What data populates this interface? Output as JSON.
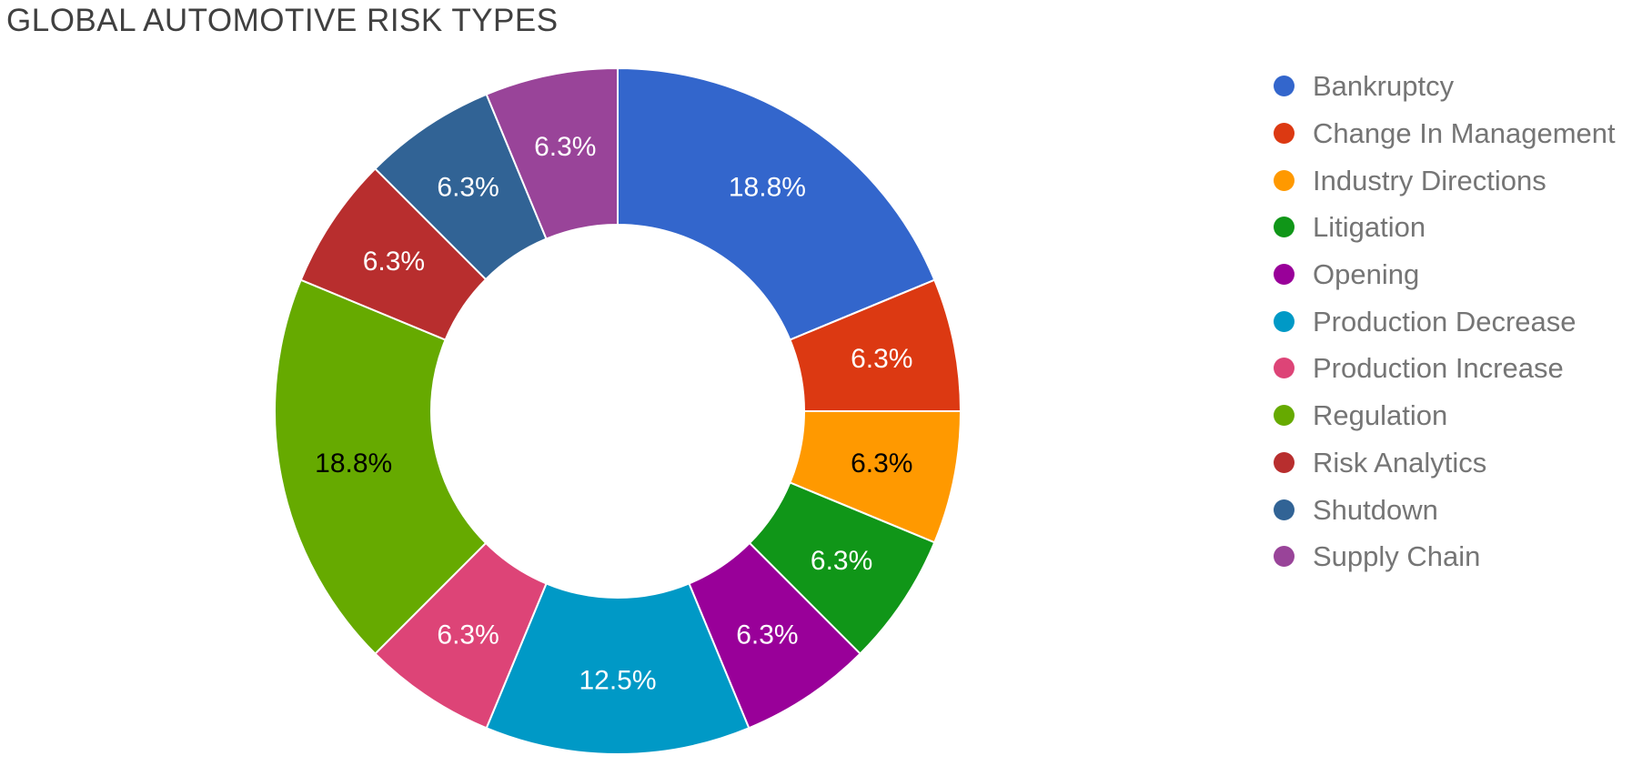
{
  "page": {
    "background": "#ffffff"
  },
  "chart_data": {
    "type": "pie",
    "subtype": "donut",
    "title": "GLOBAL AUTOMOTIVE RISK TYPES",
    "title_color": "#404040",
    "legend_position": "right",
    "legend_text_color": "#757575",
    "pie_hole_ratio": 0.55,
    "slice_border_color": "#ffffff",
    "start_angle_deg": 0,
    "direction": "clockwise",
    "slices": [
      {
        "label": "Bankruptcy",
        "percent": 18.75,
        "display": "18.8%",
        "color": "#3366CC",
        "label_color": "#ffffff"
      },
      {
        "label": "Change In Management",
        "percent": 6.25,
        "display": "6.3%",
        "color": "#DC3912",
        "label_color": "#ffffff"
      },
      {
        "label": "Industry Directions",
        "percent": 6.25,
        "display": "6.3%",
        "color": "#FF9900",
        "label_color": "#000000"
      },
      {
        "label": "Litigation",
        "percent": 6.25,
        "display": "6.3%",
        "color": "#109618",
        "label_color": "#ffffff"
      },
      {
        "label": "Opening",
        "percent": 6.25,
        "display": "6.3%",
        "color": "#990099",
        "label_color": "#ffffff"
      },
      {
        "label": "Production Decrease",
        "percent": 12.5,
        "display": "12.5%",
        "color": "#0099C6",
        "label_color": "#ffffff"
      },
      {
        "label": "Production Increase",
        "percent": 6.25,
        "display": "6.3%",
        "color": "#DD4477",
        "label_color": "#ffffff"
      },
      {
        "label": "Regulation",
        "percent": 18.75,
        "display": "18.8%",
        "color": "#66AA00",
        "label_color": "#000000"
      },
      {
        "label": "Risk Analytics",
        "percent": 6.25,
        "display": "6.3%",
        "color": "#B82E2E",
        "label_color": "#ffffff"
      },
      {
        "label": "Shutdown",
        "percent": 6.25,
        "display": "6.3%",
        "color": "#316395",
        "label_color": "#ffffff"
      },
      {
        "label": "Supply Chain",
        "percent": 6.25,
        "display": "6.3%",
        "color": "#994499",
        "label_color": "#ffffff"
      }
    ]
  }
}
